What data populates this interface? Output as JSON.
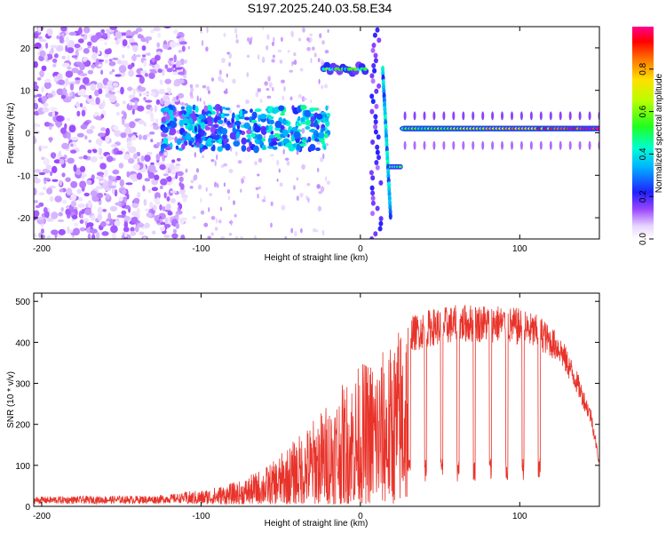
{
  "title": "S197.2025.240.03.58.E34",
  "chart_data": [
    {
      "type": "heatmap",
      "name": "spectrogram",
      "xlabel": "Height of straight line (km)",
      "ylabel": "Frequency (Hz)",
      "xlim": [
        -205,
        150
      ],
      "ylim": [
        -25,
        25
      ],
      "xticks": [
        -200,
        -100,
        0,
        100
      ],
      "yticks": [
        -20,
        -10,
        0,
        10,
        20
      ],
      "colorbar": {
        "label": "Normalized spectral amplitude",
        "range": [
          0,
          1
        ],
        "ticks": [
          0.0,
          0.2,
          0.4,
          0.6,
          0.8
        ],
        "tick_labels": [
          "0.0",
          "0.2",
          "0.4",
          "0.6",
          "0.8"
        ],
        "colormap": "rainbow (white-violet-blue-cyan-green-yellow-red-magenta)"
      },
      "features": [
        {
          "name": "noise",
          "x_range": [
            -205,
            -110
          ],
          "freq_range": [
            -25,
            25
          ],
          "amplitude": 0.1
        },
        {
          "name": "broadband-echo",
          "x_range": [
            -125,
            -20
          ],
          "freq_center": 1,
          "freq_halfwidth": 5,
          "amplitude": 0.25
        },
        {
          "name": "tone-15hz",
          "x_range": [
            -23,
            3
          ],
          "freq": 15,
          "amplitude": 0.45
        },
        {
          "name": "vertical-streak",
          "x_range": [
            7,
            13
          ],
          "freq_range": [
            -25,
            25
          ],
          "amplitude": 0.15
        },
        {
          "name": "sweep",
          "x_range": [
            14,
            19
          ],
          "freq_range": [
            -20,
            15
          ],
          "amplitude": 0.3
        },
        {
          "name": "tone-minus8hz",
          "x_range": [
            19,
            26
          ],
          "freq": -8,
          "amplitude": 0.4
        },
        {
          "name": "carrier-line",
          "x_range": [
            28,
            150
          ],
          "freq": 1,
          "amplitude_start": 0.5,
          "amplitude_end": 0.95
        }
      ]
    },
    {
      "type": "line",
      "name": "snr",
      "xlabel": "Height of straight line (km)",
      "ylabel": "SNR (10 * v/v)",
      "xlim": [
        -205,
        150
      ],
      "ylim": [
        0,
        520
      ],
      "xticks": [
        -200,
        -100,
        0,
        100
      ],
      "yticks": [
        0,
        100,
        200,
        300,
        400,
        500
      ],
      "color": "#e8332a",
      "series": [
        {
          "name": "SNR",
          "envelope_x": [
            -205,
            -130,
            -100,
            -75,
            -55,
            -35,
            -20,
            -10,
            0,
            10,
            20,
            30,
            45,
            65,
            85,
            100,
            115,
            125,
            135,
            145,
            150
          ],
          "envelope_y": [
            20,
            22,
            30,
            50,
            90,
            160,
            220,
            260,
            300,
            320,
            340,
            440,
            460,
            470,
            470,
            460,
            440,
            410,
            330,
            230,
            110
          ]
        }
      ]
    }
  ]
}
